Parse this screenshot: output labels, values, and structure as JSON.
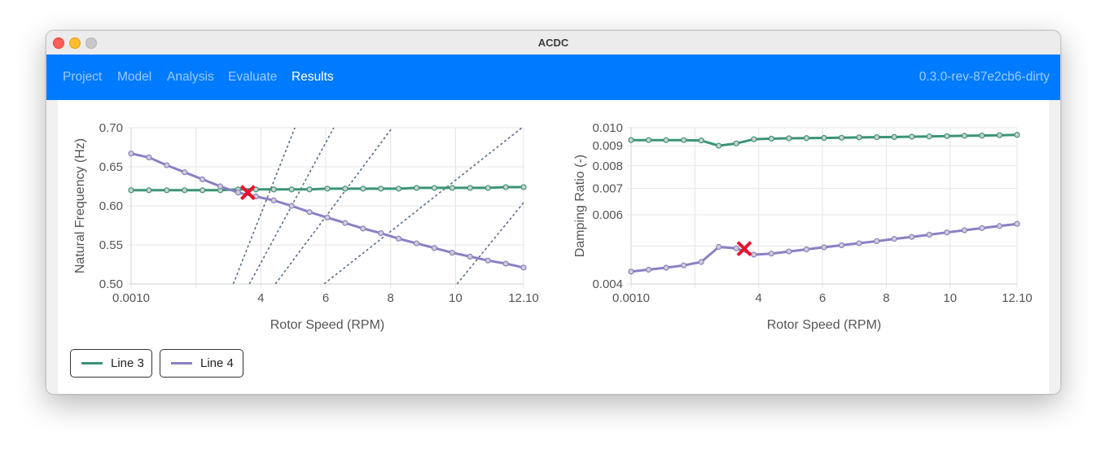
{
  "window": {
    "title": "ACDC"
  },
  "nav": {
    "items": [
      {
        "label": "Project",
        "active": false
      },
      {
        "label": "Model",
        "active": false
      },
      {
        "label": "Analysis",
        "active": false
      },
      {
        "label": "Evaluate",
        "active": false
      },
      {
        "label": "Results",
        "active": true
      }
    ],
    "version": "0.3.0-rev-87e2cb6-dirty"
  },
  "colors": {
    "accent": "#007bff",
    "line3": "#3a9474",
    "line4": "#8b7fc4",
    "marker": "#e8112d",
    "harmonic": "#5a6d88"
  },
  "legend": [
    {
      "label": "Line 3",
      "color": "#3a9474"
    },
    {
      "label": "Line 4",
      "color": "#8b7fc4"
    }
  ],
  "chart_data": [
    {
      "type": "line",
      "title": "",
      "xlabel": "Rotor Speed (RPM)",
      "ylabel": "Natural Frequency (Hz)",
      "xlim": [
        0.001,
        12.1
      ],
      "ylim": [
        0.5,
        0.7
      ],
      "xticks": [
        "0.0010",
        "4",
        "6",
        "8",
        "10",
        "12.10"
      ],
      "yticks": [
        "0.50",
        "0.55",
        "0.60",
        "0.65",
        "0.70"
      ],
      "series": [
        {
          "name": "Line 3",
          "x": [
            0.001,
            0.55,
            1.1,
            1.65,
            2.2,
            2.75,
            3.3,
            3.85,
            4.4,
            4.95,
            5.5,
            6.05,
            6.6,
            7.15,
            7.7,
            8.25,
            8.8,
            9.35,
            9.9,
            10.45,
            11.0,
            11.55,
            12.1
          ],
          "y": [
            0.62,
            0.62,
            0.62,
            0.62,
            0.62,
            0.62,
            0.621,
            0.621,
            0.621,
            0.621,
            0.621,
            0.622,
            0.622,
            0.622,
            0.622,
            0.622,
            0.623,
            0.623,
            0.623,
            0.623,
            0.623,
            0.624,
            0.624
          ]
        },
        {
          "name": "Line 4",
          "x": [
            0.001,
            0.55,
            1.1,
            1.65,
            2.2,
            2.75,
            3.3,
            3.85,
            4.4,
            4.95,
            5.5,
            6.05,
            6.6,
            7.15,
            7.7,
            8.25,
            8.8,
            9.35,
            9.9,
            10.45,
            11.0,
            11.55,
            12.1
          ],
          "y": [
            0.667,
            0.662,
            0.652,
            0.643,
            0.634,
            0.625,
            0.617,
            0.612,
            0.607,
            0.6,
            0.592,
            0.585,
            0.578,
            0.571,
            0.565,
            0.558,
            0.552,
            0.546,
            0.54,
            0.535,
            0.53,
            0.526,
            0.521
          ]
        }
      ],
      "harmonic_lines": [
        {
          "x0": 3.15,
          "x1": 5.05
        },
        {
          "x0": 3.65,
          "x1": 6.25
        },
        {
          "x0": 4.45,
          "x1": 8.05
        },
        {
          "x0": 5.95,
          "x1": 12.05
        },
        {
          "x0": 10.05,
          "x1": 12.1,
          "y1": 0.604
        }
      ],
      "marker": {
        "x": 3.6,
        "y": 0.617
      }
    },
    {
      "type": "line",
      "title": "",
      "xlabel": "Rotor Speed (RPM)",
      "ylabel": "Damping Ratio (-)",
      "xlim": [
        0.001,
        12.1
      ],
      "ylim": [
        0.004,
        0.01
      ],
      "scale_y": "log",
      "xticks": [
        "0.0010",
        "4",
        "6",
        "8",
        "10",
        "12.10"
      ],
      "yticks": [
        "0.004",
        "0.006",
        "0.007",
        "0.008",
        "0.009",
        "0.010"
      ],
      "series": [
        {
          "name": "Line 3",
          "x": [
            0.001,
            0.55,
            1.1,
            1.65,
            2.2,
            2.75,
            3.3,
            3.85,
            4.4,
            4.95,
            5.5,
            6.05,
            6.6,
            7.15,
            7.7,
            8.25,
            8.8,
            9.35,
            9.9,
            10.45,
            11.0,
            11.55,
            12.1
          ],
          "y": [
            0.0093,
            0.0093,
            0.0093,
            0.0093,
            0.00928,
            0.009,
            0.00912,
            0.00935,
            0.00938,
            0.0094,
            0.00941,
            0.00942,
            0.00943,
            0.00945,
            0.00946,
            0.00947,
            0.00949,
            0.0095,
            0.00952,
            0.00954,
            0.00955,
            0.00957,
            0.00959
          ]
        },
        {
          "name": "Line 4",
          "x": [
            0.001,
            0.55,
            1.1,
            1.65,
            2.2,
            2.75,
            3.3,
            3.85,
            4.4,
            4.95,
            5.5,
            6.05,
            6.6,
            7.15,
            7.7,
            8.25,
            8.8,
            9.35,
            9.9,
            10.45,
            11.0,
            11.55,
            12.1
          ],
          "y": [
            0.0043,
            0.00435,
            0.0044,
            0.00446,
            0.00455,
            0.00497,
            0.00493,
            0.00475,
            0.00478,
            0.00484,
            0.0049,
            0.00496,
            0.00502,
            0.00508,
            0.00514,
            0.00521,
            0.00527,
            0.00534,
            0.00541,
            0.00548,
            0.00555,
            0.00562,
            0.00569
          ]
        }
      ],
      "marker": {
        "x": 3.55,
        "y": 0.00492
      }
    }
  ]
}
